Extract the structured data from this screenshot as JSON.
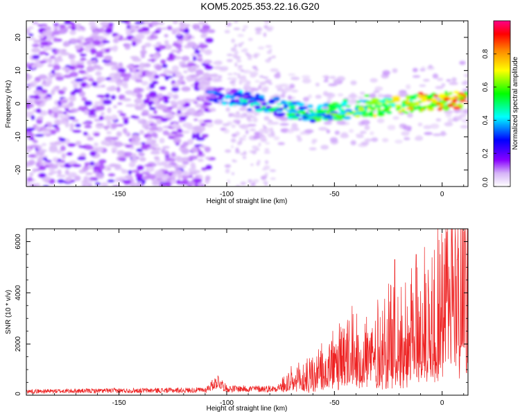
{
  "title": "KOM5.2025.353.22.16.G20",
  "chart_data": [
    {
      "type": "heatmap",
      "name": "spectrogram",
      "xlabel": "Height of straight line (km)",
      "ylabel": "Frequency (Hz)",
      "xlim": [
        -193,
        12
      ],
      "ylim": [
        -25,
        25
      ],
      "xticks": [
        -150,
        -100,
        -50,
        0
      ],
      "yticks": [
        -20,
        -10,
        0,
        10,
        20
      ],
      "colorbar": {
        "label": "Normalized spectral amplitude",
        "range": [
          0.0,
          1.0
        ],
        "ticks": [
          "0.0",
          "0.2",
          "0.4",
          "0.6",
          "0.8"
        ],
        "tick_values": [
          0.0,
          0.2,
          0.4,
          0.6,
          0.8
        ],
        "colormap": [
          "#ffffff",
          "#d6b4f7",
          "#8800ff",
          "#0000ff",
          "#00ffff",
          "#00ff00",
          "#ffff00",
          "#ff8800",
          "#ff0000",
          "#ff0088"
        ]
      },
      "signal_band": {
        "x_start": -108,
        "x_end": 12,
        "freq_at_start": 3,
        "freq_mid": -3,
        "freq_at_end": 1.5
      }
    },
    {
      "type": "line",
      "name": "snr",
      "xlabel": "Height of straight line (km)",
      "ylabel": "SNR (10 * v/v)",
      "xlim": [
        -193,
        12
      ],
      "ylim": [
        0,
        6500
      ],
      "xticks": [
        -150,
        -100,
        -50,
        0
      ],
      "yticks": [
        0,
        2000,
        4000,
        6000
      ],
      "color": "#ee2222",
      "keypoints": {
        "x": [
          -193,
          -110,
          -104,
          -100,
          -78,
          -70,
          -60,
          -50,
          -40,
          -30,
          -20,
          -10,
          -5,
          0,
          5,
          10,
          12
        ],
        "y": [
          150,
          200,
          550,
          250,
          250,
          500,
          800,
          1200,
          1600,
          1800,
          2200,
          2600,
          3200,
          3600,
          4200,
          4800,
          4700
        ]
      },
      "peaks": [
        {
          "x": -22,
          "y": 5300
        },
        {
          "x": -12,
          "y": 5500
        },
        {
          "x": 7,
          "y": 5300
        },
        {
          "x": 10,
          "y": 6400
        },
        {
          "x": 9,
          "y": 2000
        }
      ]
    }
  ]
}
